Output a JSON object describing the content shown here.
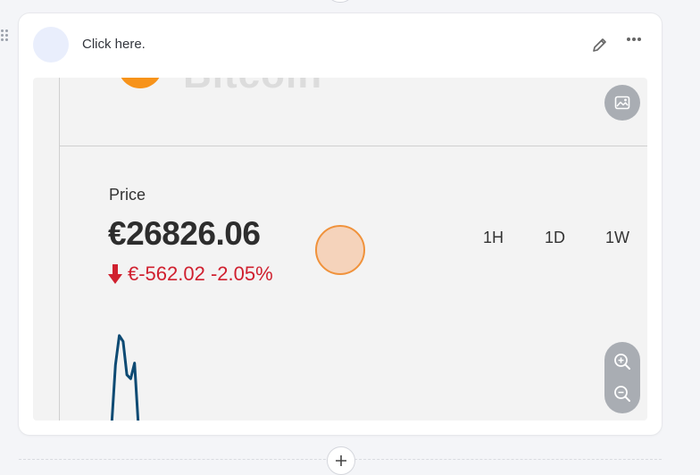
{
  "block": {
    "title": "Click here.",
    "avatar_glyph": "⁨"
  },
  "widget": {
    "coin_name": "Bitcoin",
    "price_label": "Price",
    "price_value": "€26826.06",
    "change_text": "€-562.02 -2.05%",
    "change_direction": "down",
    "ranges": [
      "1H",
      "1D",
      "1W"
    ],
    "chart_data": {
      "type": "line",
      "series": [
        {
          "values": [
            0,
            62,
            92,
            86,
            52,
            48,
            64,
            0
          ]
        }
      ]
    }
  },
  "icons": {
    "drag": "drag-handle-icon",
    "edit": "pencil-icon",
    "more": "more-horizontal-icon",
    "image": "image-icon",
    "zoom_in": "zoom-in-icon",
    "zoom_out": "zoom-out-icon",
    "add": "plus-icon",
    "arrow": "arrow-down-icon"
  },
  "colors": {
    "accent_orange": "#f7931a",
    "negative": "#d0202f",
    "chart_line": "#0d4a73",
    "pill": "#a9adb3"
  }
}
